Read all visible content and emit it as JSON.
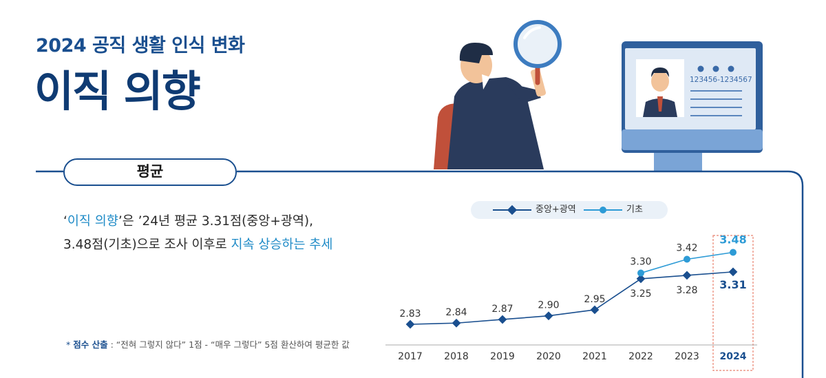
{
  "header": {
    "subtitle": "2024 공직 생활 인식 변화",
    "title": "이직 의향"
  },
  "section": {
    "label": "평균"
  },
  "summary": {
    "quote_open": "‘",
    "quote_term": "이직 의향",
    "line1_rest": "’은 ’24년 평균 3.31점(중앙+광역),",
    "line2_prefix": "3.48점(기초)으로 조사 이후로 ",
    "line2_highlight": "지속 상승하는 추세"
  },
  "note": {
    "marker": "*",
    "label": "점수 산출",
    "text": " : “전혀 그렇지 않다” 1점 - “매우 그렇다” 5점 환산하여 평균한 값"
  },
  "colors": {
    "navy": "#1a4f8f",
    "series_central": "#1a4f8f",
    "series_basic": "#2d9bd6",
    "highlight_box": "#e8826f"
  },
  "chart_data": {
    "type": "line",
    "categories": [
      "2017",
      "2018",
      "2019",
      "2020",
      "2021",
      "2022",
      "2023",
      "2024"
    ],
    "series": [
      {
        "name": "중앙+광역",
        "values": [
          2.83,
          2.84,
          2.87,
          2.9,
          2.95,
          3.25,
          3.28,
          3.31
        ],
        "marker": "diamond"
      },
      {
        "name": "기초",
        "values": [
          null,
          null,
          null,
          null,
          null,
          3.3,
          3.42,
          3.48
        ],
        "marker": "circle"
      }
    ],
    "data_labels": [
      "2.83",
      "2.84",
      "2.87",
      "2.90",
      "2.95",
      "3.25",
      "3.28",
      "3.31"
    ],
    "data_labels_basic": [
      "3.30",
      "3.42",
      "3.48"
    ],
    "highlight_category": "2024",
    "legend_position": "top",
    "grid": false
  }
}
